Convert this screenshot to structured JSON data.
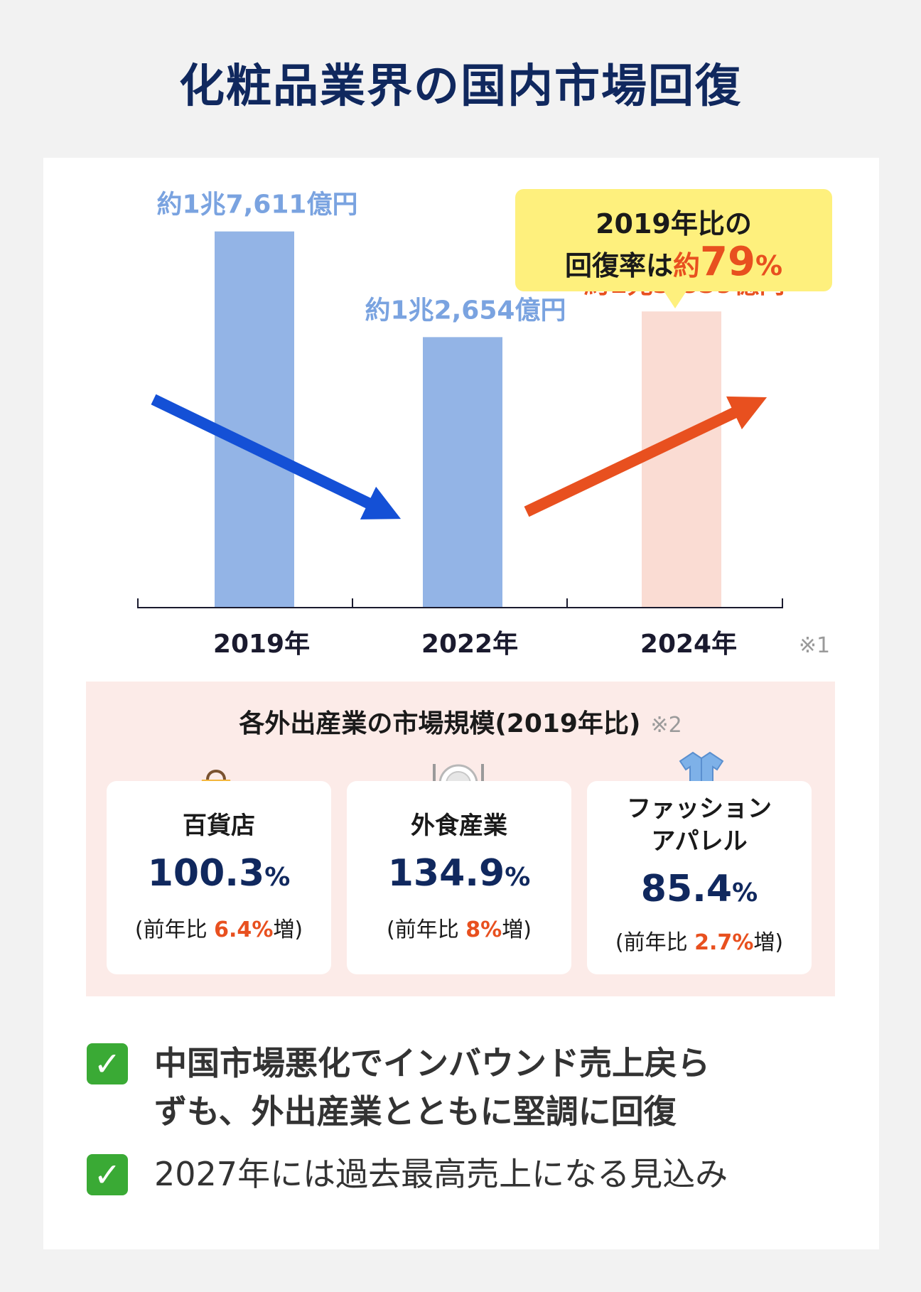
{
  "title": "化粧品業界の国内市場回復",
  "chart_data": {
    "type": "bar",
    "categories": [
      "2019年",
      "2022年",
      "2024年"
    ],
    "values": [
      17611,
      12654,
      13859
    ],
    "value_labels": [
      "約1兆7,611億円",
      "約1兆2,654億円",
      "約1兆3,859億円"
    ],
    "unit": "億円",
    "bar_colors": [
      "#93b4e6",
      "#93b4e6",
      "#fadcd3"
    ],
    "label_colors": [
      "#7aa3e0",
      "#7aa3e0",
      "#e8501f"
    ],
    "ylim": [
      0,
      20000
    ],
    "note": "※1",
    "callout": {
      "line1": "2019年比の",
      "line2_prefix": "回復率は",
      "line2_about": "約",
      "line2_number": "79",
      "line2_percent": "%"
    },
    "trend_arrows": [
      {
        "direction": "down",
        "color": "#1450d6"
      },
      {
        "direction": "up",
        "color": "#e8501f"
      }
    ]
  },
  "industry": {
    "title": "各外出産業の市場規模(2019年比)",
    "note": "※2",
    "cards": [
      {
        "icon": "shopping-bag-icon",
        "name": "百貨店",
        "value": "100.3",
        "unit": "%",
        "sub_prefix": "(前年比 ",
        "sub_number": "6.4",
        "sub_unit": "%",
        "sub_suffix": "増)"
      },
      {
        "icon": "plate-cutlery-icon",
        "name": "外食産業",
        "value": "134.9",
        "unit": "%",
        "sub_prefix": "(前年比 ",
        "sub_number": "8",
        "sub_unit": "%",
        "sub_suffix": "増)"
      },
      {
        "icon": "shirt-icon",
        "name_line1": "ファッション",
        "name_line2": "アパレル",
        "value": "85.4",
        "unit": "%",
        "sub_prefix": "(前年比 ",
        "sub_number": "2.7",
        "sub_unit": "%",
        "sub_suffix": "増)"
      }
    ]
  },
  "checks": [
    {
      "line1": "中国市場悪化でインバウンド売上戻ら",
      "line2": "ずも、外出産業とともに堅調に回復"
    },
    {
      "line1": "2027年には過去最高売上になる見込み"
    }
  ],
  "colors": {
    "title": "#10285e",
    "accent_orange": "#e8501f",
    "accent_blue": "#1450d6",
    "callout_bg": "#fef07d",
    "panel_bg": "#fcebe8",
    "check_green": "#3aaa35"
  }
}
